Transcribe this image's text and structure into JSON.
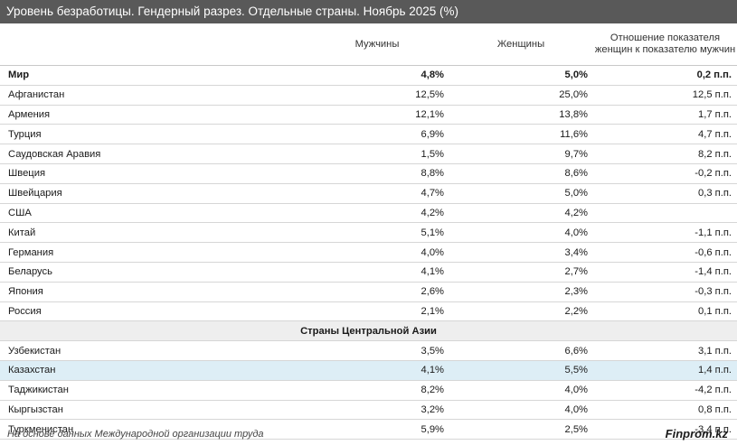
{
  "title": "Уровень безработицы. Гендерный разрез. Отдельные страны. Ноябрь 2025 (%)",
  "columns": {
    "men": "Мужчины",
    "women": "Женщины",
    "ratio": "Отношение показателя женщин к показателю мужчин"
  },
  "world": {
    "name": "Мир",
    "men": "4,8%",
    "women": "5,0%",
    "ratio": "0,2 п.п."
  },
  "countries": [
    {
      "name": "Афганистан",
      "men": "12,5%",
      "women": "25,0%",
      "ratio": "12,5 п.п."
    },
    {
      "name": "Армения",
      "men": "12,1%",
      "women": "13,8%",
      "ratio": "1,7 п.п."
    },
    {
      "name": "Турция",
      "men": "6,9%",
      "women": "11,6%",
      "ratio": "4,7 п.п."
    },
    {
      "name": "Саудовская Аравия",
      "men": "1,5%",
      "women": "9,7%",
      "ratio": "8,2 п.п."
    },
    {
      "name": "Швеция",
      "men": "8,8%",
      "women": "8,6%",
      "ratio": "-0,2 п.п."
    },
    {
      "name": "Швейцария",
      "men": "4,7%",
      "women": "5,0%",
      "ratio": "0,3 п.п."
    },
    {
      "name": "США",
      "men": "4,2%",
      "women": "4,2%",
      "ratio": ""
    },
    {
      "name": "Китай",
      "men": "5,1%",
      "women": "4,0%",
      "ratio": "-1,1 п.п."
    },
    {
      "name": "Германия",
      "men": "4,0%",
      "women": "3,4%",
      "ratio": "-0,6 п.п."
    },
    {
      "name": "Беларусь",
      "men": "4,1%",
      "women": "2,7%",
      "ratio": "-1,4 п.п."
    },
    {
      "name": "Япония",
      "men": "2,6%",
      "women": "2,3%",
      "ratio": "-0,3 п.п."
    },
    {
      "name": "Россия",
      "men": "2,1%",
      "women": "2,2%",
      "ratio": "0,1 п.п."
    }
  ],
  "section_title": "Страны Центральной Азии",
  "central_asia": [
    {
      "name": "Узбекистан",
      "men": "3,5%",
      "women": "6,6%",
      "ratio": "3,1 п.п.",
      "highlight": false
    },
    {
      "name": "Казахстан",
      "men": "4,1%",
      "women": "5,5%",
      "ratio": "1,4 п.п.",
      "highlight": true
    },
    {
      "name": "Таджикистан",
      "men": "8,2%",
      "women": "4,0%",
      "ratio": "-4,2 п.п.",
      "highlight": false
    },
    {
      "name": "Кыргызстан",
      "men": "3,2%",
      "women": "4,0%",
      "ratio": "0,8 п.п.",
      "highlight": false
    },
    {
      "name": "Туркменистан",
      "men": "5,9%",
      "women": "2,5%",
      "ratio": "-3,4 п.п.",
      "highlight": false
    }
  ],
  "highlight_color": "#ddeef6",
  "footer": {
    "source": "На основе данных Международной организации труда",
    "brand": "Finprom.kz"
  }
}
